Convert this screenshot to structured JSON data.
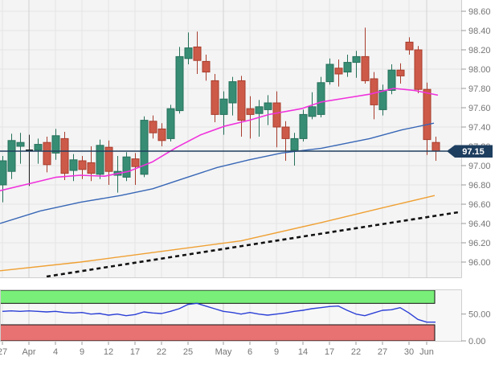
{
  "chart_data": {
    "type": "candlestick",
    "panels": [
      "price",
      "oscillator"
    ],
    "price_axis": {
      "labels": [
        "98.60",
        "98.40",
        "98.20",
        "98.00",
        "97.80",
        "97.60",
        "97.40",
        "97.20",
        "97.00",
        "96.80",
        "96.60",
        "96.40",
        "96.20",
        "96.00"
      ],
      "max": 98.6,
      "min": 96.0,
      "step": 0.2
    },
    "last_price": {
      "label": "97.15",
      "value": 97.15
    },
    "x_axis": {
      "ticks": [
        {
          "label": "27",
          "index": 0,
          "month": false
        },
        {
          "label": "Apr",
          "index": 3,
          "month": true
        },
        {
          "label": "4",
          "index": 6,
          "month": false
        },
        {
          "label": "9",
          "index": 9,
          "month": false
        },
        {
          "label": "12",
          "index": 12,
          "month": false
        },
        {
          "label": "17",
          "index": 15,
          "month": false
        },
        {
          "label": "22",
          "index": 18,
          "month": false
        },
        {
          "label": "25",
          "index": 21,
          "month": false
        },
        {
          "label": "May",
          "index": 25,
          "month": true
        },
        {
          "label": "6",
          "index": 28,
          "month": false
        },
        {
          "label": "9",
          "index": 31,
          "month": false
        },
        {
          "label": "14",
          "index": 34,
          "month": false
        },
        {
          "label": "17",
          "index": 37,
          "month": false
        },
        {
          "label": "22",
          "index": 40,
          "month": false
        },
        {
          "label": "27",
          "index": 43,
          "month": false
        },
        {
          "label": "30",
          "index": 46,
          "month": false
        },
        {
          "label": "Jun",
          "index": 48,
          "month": true
        }
      ]
    },
    "candles": [
      [
        96.8,
        97.1,
        96.62,
        97.05
      ],
      [
        96.94,
        97.33,
        96.86,
        97.26
      ],
      [
        97.2,
        97.34,
        97.02,
        97.24
      ],
      [
        97.16,
        97.32,
        96.79,
        97.16,
        "doji"
      ],
      [
        97.16,
        97.28,
        97.02,
        97.22
      ],
      [
        97.24,
        97.3,
        96.93,
        97.01
      ],
      [
        97.13,
        97.38,
        97.06,
        97.31
      ],
      [
        97.28,
        97.35,
        96.85,
        96.92
      ],
      [
        96.95,
        97.12,
        96.84,
        97.06
      ],
      [
        97.05,
        97.1,
        96.86,
        96.96
      ],
      [
        97.03,
        97.2,
        96.84,
        96.92
      ],
      [
        96.91,
        97.27,
        96.86,
        97.21
      ],
      [
        97.19,
        97.26,
        96.8,
        96.94
      ],
      [
        96.9,
        97.1,
        96.72,
        96.94
      ],
      [
        96.88,
        97.14,
        96.84,
        97.09
      ],
      [
        97.07,
        97.13,
        96.8,
        96.99
      ],
      [
        96.91,
        97.51,
        96.88,
        97.47
      ],
      [
        97.46,
        97.52,
        97.28,
        97.34
      ],
      [
        97.38,
        97.44,
        97.2,
        97.26
      ],
      [
        97.28,
        97.63,
        97.25,
        97.59
      ],
      [
        97.57,
        98.23,
        97.54,
        98.13
      ],
      [
        98.11,
        98.38,
        98.05,
        98.22
      ],
      [
        98.23,
        98.39,
        97.95,
        98.09
      ],
      [
        98.08,
        98.15,
        97.88,
        97.97
      ],
      [
        97.88,
        97.95,
        97.45,
        97.53
      ],
      [
        97.53,
        97.77,
        97.32,
        97.69
      ],
      [
        97.65,
        97.92,
        97.52,
        97.87
      ],
      [
        97.88,
        97.93,
        97.3,
        97.47
      ],
      [
        97.59,
        97.72,
        97.28,
        97.53
      ],
      [
        97.54,
        97.68,
        97.3,
        97.61
      ],
      [
        97.58,
        97.73,
        97.42,
        97.65
      ],
      [
        97.65,
        97.77,
        97.19,
        97.4
      ],
      [
        97.4,
        97.46,
        97.05,
        97.28
      ],
      [
        97.16,
        97.34,
        97.0,
        97.28
      ],
      [
        97.28,
        97.58,
        97.25,
        97.53
      ],
      [
        97.51,
        97.76,
        97.48,
        97.61
      ],
      [
        97.53,
        97.92,
        97.5,
        97.86
      ],
      [
        97.87,
        98.11,
        97.84,
        98.05
      ],
      [
        98.01,
        98.1,
        97.82,
        97.95
      ],
      [
        97.97,
        98.15,
        97.92,
        98.07
      ],
      [
        98.07,
        98.19,
        97.91,
        98.13
      ],
      [
        98.13,
        98.43,
        97.85,
        97.88
      ],
      [
        97.9,
        97.97,
        97.48,
        97.63
      ],
      [
        97.58,
        97.84,
        97.52,
        97.78
      ],
      [
        97.78,
        98.05,
        97.74,
        97.99
      ],
      [
        97.99,
        98.06,
        97.85,
        97.93
      ],
      [
        98.28,
        98.33,
        98.15,
        98.2
      ],
      [
        98.2,
        98.24,
        97.75,
        97.79
      ],
      [
        97.79,
        97.86,
        97.11,
        97.27
      ],
      [
        97.24,
        97.3,
        97.05,
        97.15
      ]
    ],
    "overlays": {
      "sma_fast": {
        "name": "sma-fast",
        "points": [
          [
            0,
            96.74
          ],
          [
            40,
            96.82
          ],
          [
            70,
            96.88
          ],
          [
            100,
            96.9
          ],
          [
            130,
            96.89
          ],
          [
            160,
            96.94
          ],
          [
            190,
            97.04
          ],
          [
            220,
            97.19
          ],
          [
            250,
            97.32
          ],
          [
            280,
            97.41
          ],
          [
            310,
            97.47
          ],
          [
            335,
            97.53
          ],
          [
            375,
            97.59
          ],
          [
            400,
            97.66
          ],
          [
            430,
            97.7
          ],
          [
            460,
            97.74
          ],
          [
            490,
            97.8
          ],
          [
            515,
            97.78
          ],
          [
            545,
            97.73
          ]
        ]
      },
      "sma_mid": {
        "name": "sma-mid",
        "points": [
          [
            0,
            96.4
          ],
          [
            50,
            96.53
          ],
          [
            100,
            96.62
          ],
          [
            150,
            96.69
          ],
          [
            190,
            96.76
          ],
          [
            230,
            96.87
          ],
          [
            270,
            96.98
          ],
          [
            310,
            97.06
          ],
          [
            350,
            97.13
          ],
          [
            400,
            97.18
          ],
          [
            460,
            97.28
          ],
          [
            500,
            97.37
          ],
          [
            540,
            97.44
          ]
        ]
      },
      "sma_slow": {
        "name": "sma-slow",
        "points": [
          [
            0,
            95.91
          ],
          [
            100,
            96.0
          ],
          [
            200,
            96.11
          ],
          [
            300,
            96.22
          ],
          [
            400,
            96.41
          ],
          [
            480,
            96.57
          ],
          [
            541,
            96.69
          ]
        ]
      },
      "trendline": {
        "name": "dotted-trendline",
        "points": [
          [
            58,
            95.85
          ],
          [
            573,
            96.52
          ]
        ]
      }
    },
    "indicator": {
      "type": "oscillator",
      "values": [
        55,
        56,
        55,
        56,
        55,
        54,
        55,
        53,
        52,
        53,
        50,
        51,
        48,
        50,
        47,
        49,
        54,
        52,
        51,
        55,
        60,
        68,
        70,
        65,
        60,
        55,
        53,
        50,
        53,
        50,
        48,
        50,
        52,
        55,
        57,
        60,
        62,
        64,
        65,
        57,
        50,
        47,
        52,
        57,
        58,
        62,
        52,
        40,
        35,
        35
      ],
      "upper_level": 70,
      "lower_level": 30,
      "axis_labels": [
        {
          "label": "50.00",
          "value": 50
        },
        {
          "label": "0.00",
          "value": 0
        }
      ]
    },
    "colors": {
      "up_fill": "#378d74",
      "up_stroke": "#25705a",
      "down_fill": "#cd5a49",
      "down_stroke": "#a83c2c",
      "doji": "#222222",
      "ma_fast": "#f032dc",
      "ma_mid": "#3867b6",
      "ma_slow": "#efa033",
      "trendline": "#111111",
      "price_line": "#1e3e5f",
      "tag_bg": "#1e3e5f",
      "tag_text": "#ffffff",
      "band_upper": "#79ef79",
      "band_lower": "#e87272",
      "band_stroke": "#111111",
      "oscillator_line": "#2b3fd6",
      "grid": "#e4e4e4",
      "grid_month": "#d2d2d2",
      "panel_bg": "#f4f4f4",
      "indicator_bg": "#f7f7f7",
      "border": "#cfcfcf",
      "axis_text": "#757575",
      "tick": "#999999"
    }
  }
}
